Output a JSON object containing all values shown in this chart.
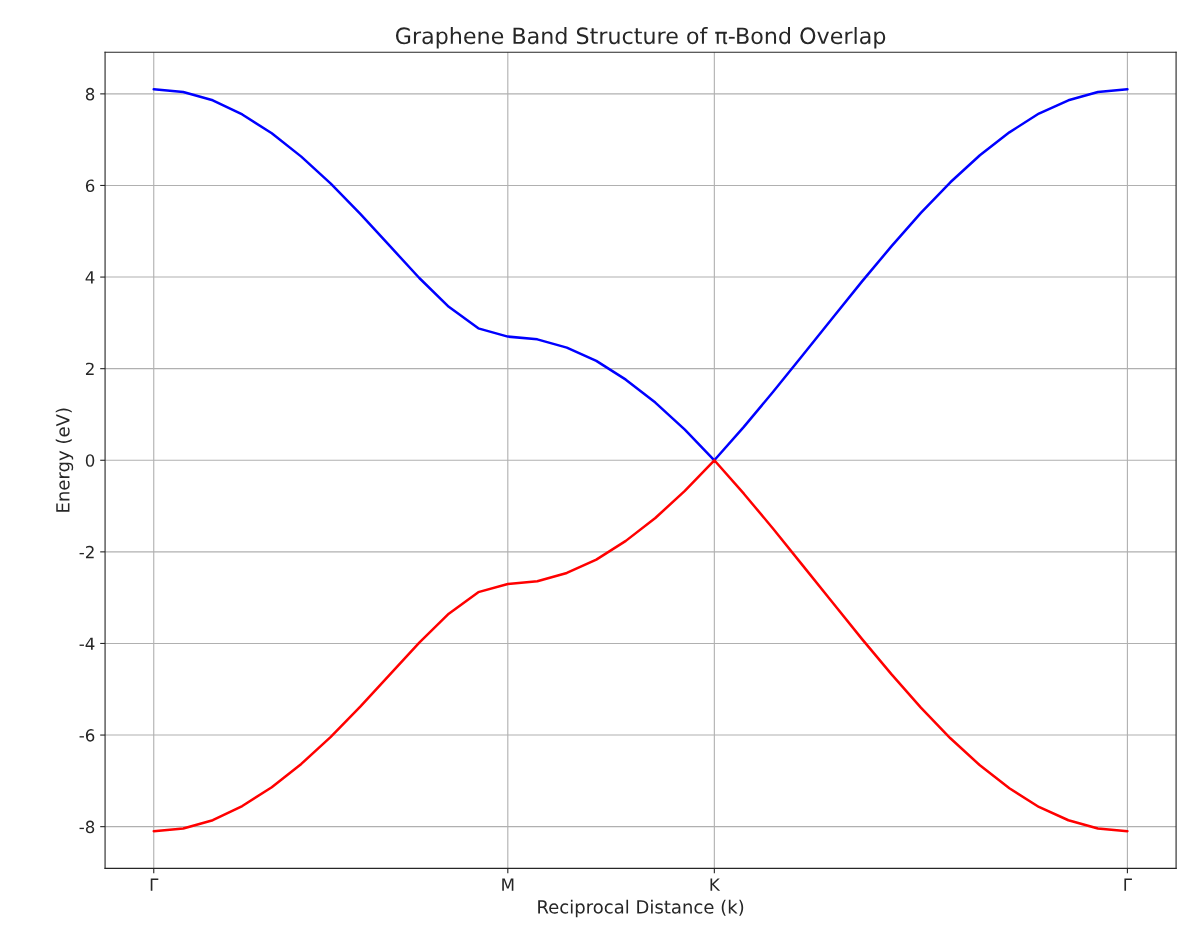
{
  "chart_data": {
    "type": "line",
    "title": "Graphene Band Structure of π-Bond Overlap",
    "xlabel": "Reciprocal Distance (k)",
    "ylabel": "Energy (eV)",
    "categories": [
      "Γ",
      null,
      null,
      null,
      null,
      null,
      null,
      null,
      null,
      null,
      null,
      null,
      "M",
      null,
      null,
      null,
      null,
      null,
      null,
      "K",
      null,
      null,
      null,
      null,
      null,
      null,
      null,
      null,
      null,
      null,
      null,
      null,
      null,
      "Γ"
    ],
    "series": [
      {
        "color": "#0000ff",
        "values": [
          8.1,
          8.04,
          7.86,
          7.55,
          7.14,
          6.63,
          6.04,
          5.38,
          4.68,
          3.98,
          3.35,
          2.88,
          2.7,
          2.64,
          2.46,
          2.17,
          1.76,
          1.26,
          0.67,
          0,
          0.73,
          1.5,
          2.3,
          3.1,
          3.9,
          4.67,
          5.4,
          6.07,
          6.66,
          7.16,
          7.57,
          7.86,
          8.04,
          8.1
        ]
      },
      {
        "color": "#ff0000",
        "values": [
          -8.1,
          -8.04,
          -7.86,
          -7.55,
          -7.14,
          -6.63,
          -6.04,
          -5.38,
          -4.68,
          -3.98,
          -3.35,
          -2.88,
          -2.7,
          -2.64,
          -2.46,
          -2.17,
          -1.76,
          -1.26,
          -0.67,
          0,
          -0.73,
          -1.5,
          -2.3,
          -3.1,
          -3.9,
          -4.67,
          -5.4,
          -6.07,
          -6.66,
          -7.16,
          -7.57,
          -7.86,
          -8.04,
          -8.1
        ]
      }
    ],
    "ylim": [
      -8.91,
      8.91
    ],
    "yticks": [
      -8,
      -6,
      -4,
      -2,
      0,
      2,
      4,
      6,
      8
    ],
    "grid": true,
    "line_style": "solid",
    "marker": "none"
  }
}
